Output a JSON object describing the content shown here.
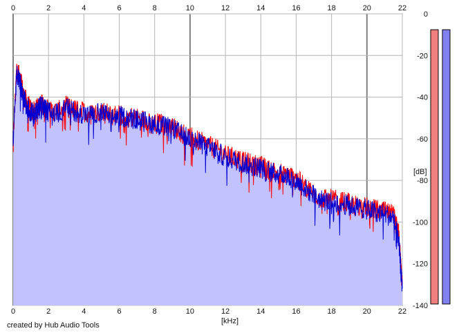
{
  "credit": "created by Hub Audio Tools",
  "chart_data": {
    "type": "area",
    "xlabel": "[kHz]",
    "ylabel": "[dB]",
    "xlim": [
      0,
      22
    ],
    "ylim": [
      -140,
      0
    ],
    "x_ticks": [
      "0",
      "2",
      "4",
      "6",
      "8",
      "10",
      "12",
      "14",
      "16",
      "18",
      "20",
      "22"
    ],
    "y_ticks": [
      "0",
      "-20",
      "-40",
      "-60",
      "-80",
      "-100",
      "-120",
      "-140"
    ],
    "grid": true,
    "colors": {
      "fill": "#c2c2ff",
      "left_channel": "#ff0000",
      "right_channel": "#0000d0",
      "left_meter": "#f08080",
      "right_meter": "#8080f0",
      "grid": "#b4b4b4",
      "major_grid": "#808080"
    },
    "series": [
      {
        "x": [
          0,
          0.2,
          0.4,
          0.6,
          0.8,
          1,
          1.2,
          1.4,
          1.6,
          1.8,
          2,
          2.5,
          3,
          3.5,
          4,
          4.5,
          5,
          5.5,
          6,
          6.5,
          7,
          7.5,
          8,
          8.5,
          9,
          9.5,
          10,
          10.5,
          11,
          11.5,
          12,
          12.5,
          13,
          13.5,
          14,
          14.5,
          15,
          15.5,
          16,
          16.5,
          17,
          17.5,
          18,
          18.5,
          19,
          19.5,
          20,
          20.5,
          21,
          21.5,
          21.8,
          22
        ],
        "values": [
          -60,
          -25,
          -30,
          -38,
          -42,
          -45,
          -46,
          -44,
          -42,
          -44,
          -45,
          -46,
          -43,
          -45,
          -46,
          -47,
          -45,
          -48,
          -47,
          -48,
          -49,
          -50,
          -51,
          -52,
          -53,
          -56,
          -58,
          -60,
          -62,
          -64,
          -67,
          -68,
          -70,
          -71,
          -72,
          -74,
          -75,
          -76,
          -78,
          -82,
          -85,
          -88,
          -88,
          -89,
          -90,
          -91,
          -92,
          -93,
          -94,
          -96,
          -105,
          -130
        ]
      },
      {
        "x": [
          0,
          0.2,
          0.4,
          0.6,
          0.8,
          1,
          1.2,
          1.4,
          1.6,
          1.8,
          2,
          2.5,
          3,
          3.5,
          4,
          4.5,
          5,
          5.5,
          6,
          6.5,
          7,
          7.5,
          8,
          8.5,
          9,
          9.5,
          10,
          10.5,
          11,
          11.5,
          12,
          12.5,
          13,
          13.5,
          14,
          14.5,
          15,
          15.5,
          16,
          16.5,
          17,
          17.5,
          18,
          18.5,
          19,
          19.5,
          20,
          20.5,
          21,
          21.5,
          21.8,
          22
        ],
        "values": [
          -60,
          -27,
          -32,
          -40,
          -44,
          -46,
          -47,
          -45,
          -43,
          -45,
          -46,
          -47,
          -44,
          -46,
          -47,
          -48,
          -46,
          -49,
          -48,
          -49,
          -50,
          -51,
          -52,
          -53,
          -54,
          -57,
          -59,
          -61,
          -63,
          -65,
          -68,
          -69,
          -71,
          -72,
          -73,
          -75,
          -76,
          -77,
          -79,
          -83,
          -86,
          -89,
          -89,
          -90,
          -91,
          -92,
          -93,
          -94,
          -95,
          -97,
          -108,
          -132
        ]
      }
    ]
  }
}
